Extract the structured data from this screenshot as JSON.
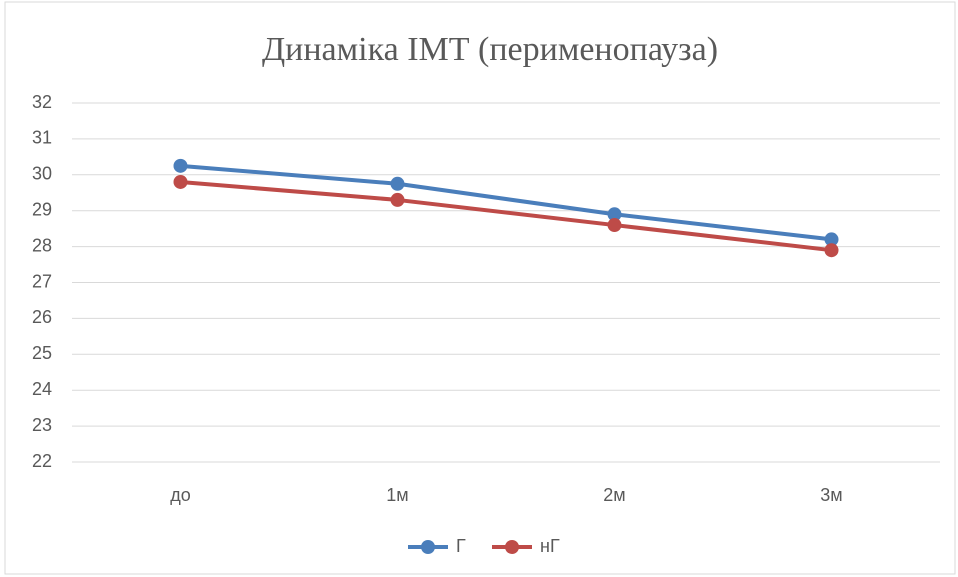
{
  "chart_data": {
    "type": "line",
    "title": "Динаміка ІМТ (перименопауза)",
    "categories": [
      "до",
      "1м",
      "2м",
      "3м"
    ],
    "series": [
      {
        "name": "Г",
        "color": "#4a7ebb",
        "values": [
          30.25,
          29.75,
          28.9,
          28.2
        ]
      },
      {
        "name": "нГ",
        "color": "#be4b48",
        "values": [
          29.8,
          29.3,
          28.6,
          27.9
        ]
      }
    ],
    "ylim": [
      22,
      32
    ],
    "yticks": [
      22,
      23,
      24,
      25,
      26,
      27,
      28,
      29,
      30,
      31,
      32
    ],
    "grid": true,
    "legend": "bottom"
  }
}
